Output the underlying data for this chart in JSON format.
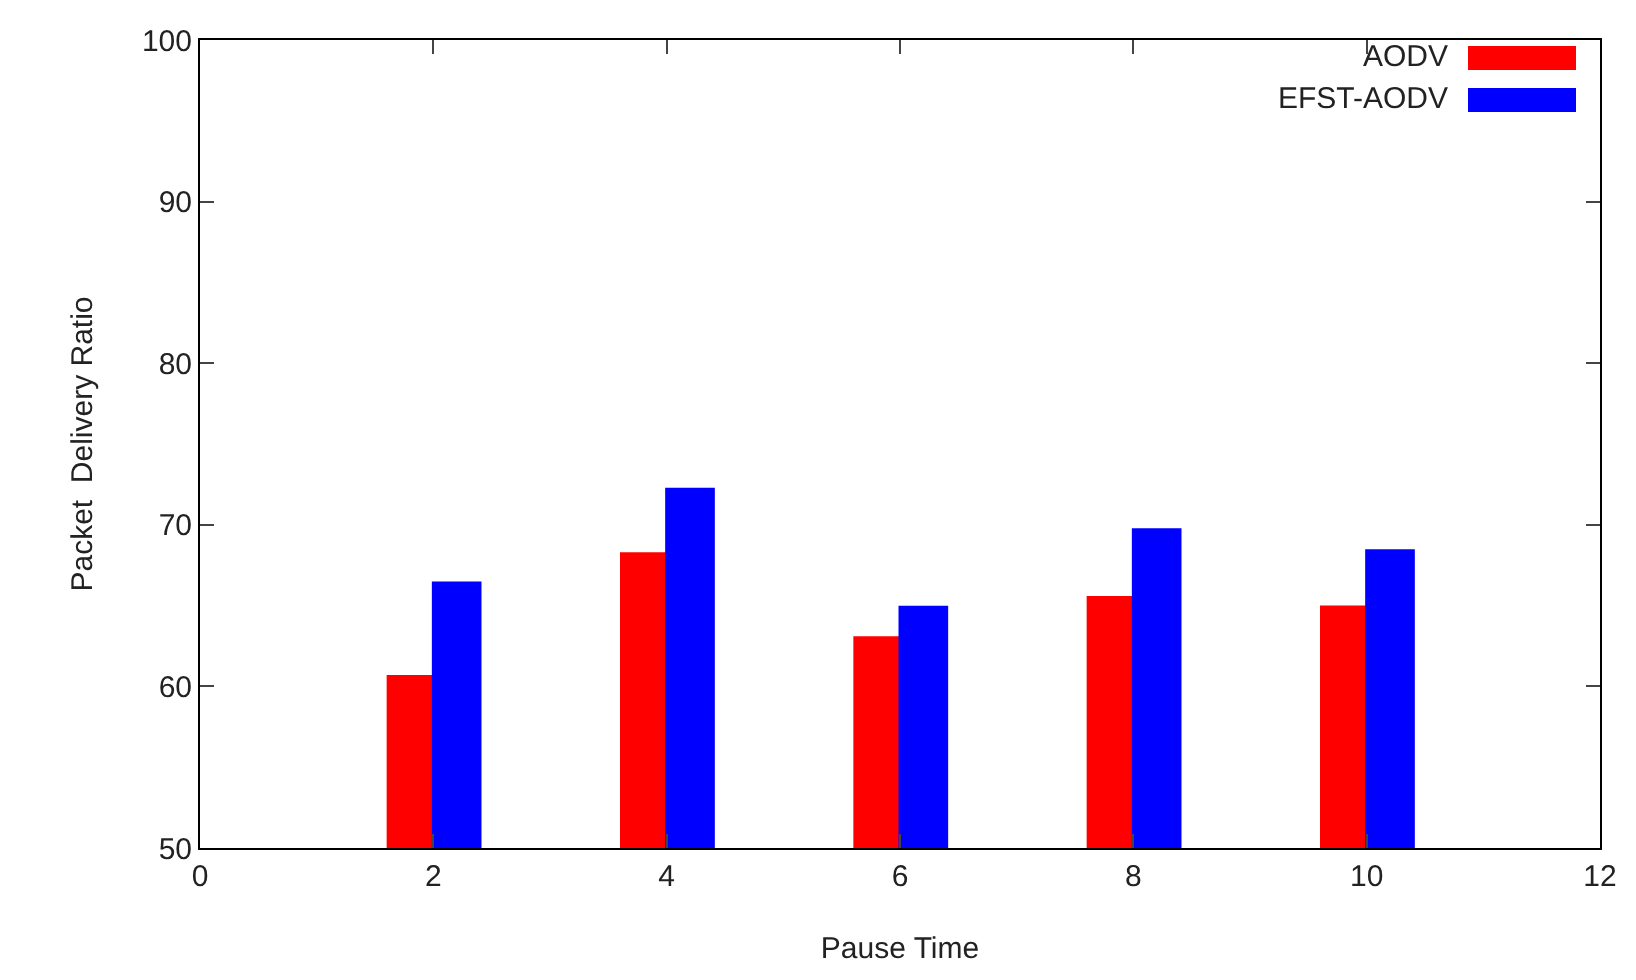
{
  "chart_data": {
    "type": "bar",
    "xlabel": "Pause Time",
    "ylabel": "Packet  Delivery Ratio",
    "x": [
      2,
      4,
      6,
      8,
      10
    ],
    "series": [
      {
        "name": "AODV",
        "color": "#ff0000",
        "values": [
          60.7,
          68.3,
          63.1,
          65.6,
          65.0
        ]
      },
      {
        "name": "EFST-AODV",
        "color": "#0000ff",
        "values": [
          66.4,
          72.2,
          64.9,
          69.7,
          68.4
        ]
      }
    ],
    "xlim": [
      0,
      12
    ],
    "xticks": [
      0,
      2,
      4,
      6,
      8,
      10,
      12
    ],
    "ylim": [
      50,
      100
    ],
    "yticks": [
      50,
      60,
      70,
      80,
      90,
      100
    ],
    "grid": false,
    "legend": "top right"
  }
}
